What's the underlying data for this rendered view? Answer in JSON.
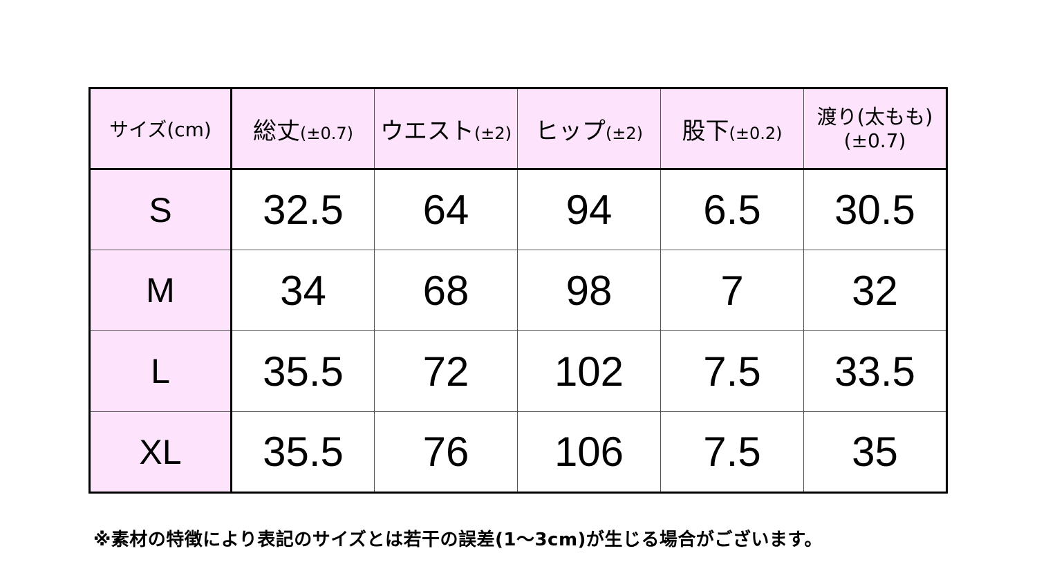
{
  "table": {
    "headers": [
      {
        "main": "サイズ(cm)",
        "tol": ""
      },
      {
        "main": "総丈",
        "tol": "(±0.7)"
      },
      {
        "main": "ウエスト",
        "tol": "(±2)"
      },
      {
        "main": "ヒップ",
        "tol": "(±2)"
      },
      {
        "main": "股下",
        "tol": "(±0.2)"
      },
      {
        "main": "渡り(太もも)",
        "tol": "(±0.7)"
      }
    ],
    "rows": [
      {
        "size": "S",
        "values": [
          "32.5",
          "64",
          "94",
          "6.5",
          "30.5"
        ]
      },
      {
        "size": "M",
        "values": [
          "34",
          "68",
          "98",
          "7",
          "32"
        ]
      },
      {
        "size": "L",
        "values": [
          "35.5",
          "72",
          "102",
          "7.5",
          "33.5"
        ]
      },
      {
        "size": "XL",
        "values": [
          "35.5",
          "76",
          "106",
          "7.5",
          "35"
        ]
      }
    ]
  },
  "note": "※素材の特徴により表記のサイズとは若干の誤差(1〜3cm)が生じる場合がございます。",
  "colors": {
    "header_bg": "#fde3fb",
    "border": "#000000"
  }
}
